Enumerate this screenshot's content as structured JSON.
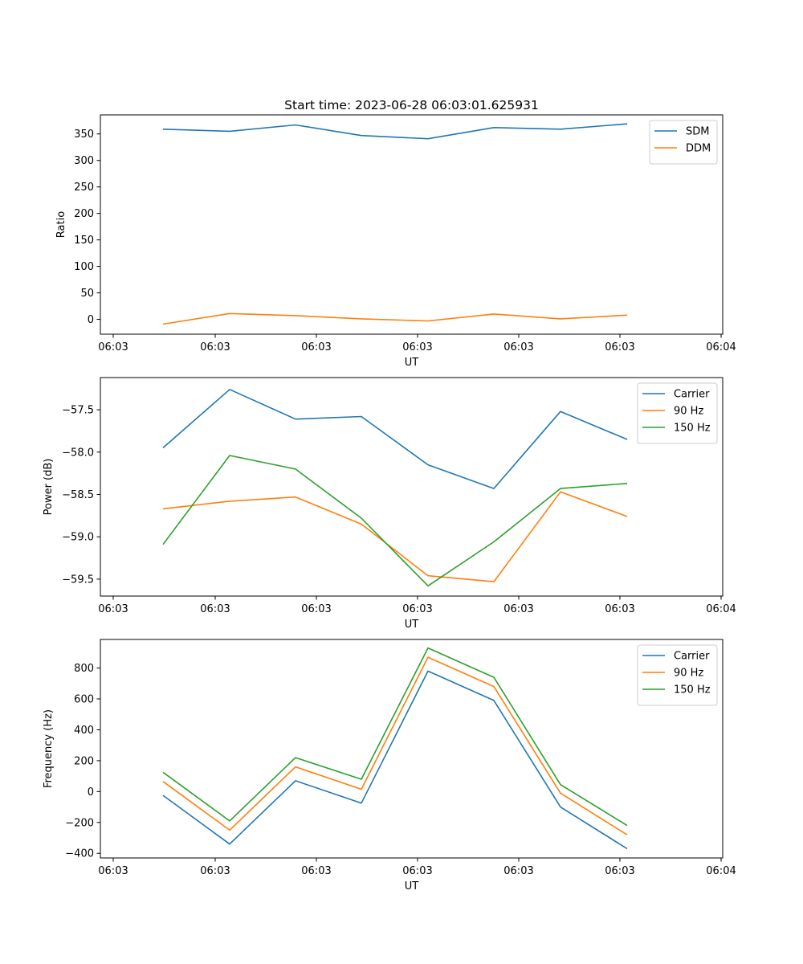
{
  "chart_data": [
    {
      "type": "line",
      "title": "Start time: 2023-06-28 06:03:01.625931",
      "xlabel": "UT",
      "ylabel": "Ratio",
      "x_tick_labels": [
        "06:03",
        "06:03",
        "06:03",
        "06:03",
        "06:03",
        "06:03",
        "06:04"
      ],
      "ylim": [
        -28,
        386
      ],
      "yticks": [
        0,
        50,
        100,
        150,
        200,
        250,
        300,
        350
      ],
      "legend": "top-right",
      "grid": false,
      "series": [
        {
          "name": "SDM",
          "color": "#1f77b4",
          "values": [
            359,
            355,
            367,
            347,
            341,
            362,
            359,
            369
          ]
        },
        {
          "name": "DDM",
          "color": "#ff7f0e",
          "values": [
            -9,
            11,
            7,
            1,
            -3,
            10,
            1,
            8
          ]
        }
      ]
    },
    {
      "type": "line",
      "title": "",
      "xlabel": "UT",
      "ylabel": "Power (dB)",
      "x_tick_labels": [
        "06:03",
        "06:03",
        "06:03",
        "06:03",
        "06:03",
        "06:03",
        "06:04"
      ],
      "ylim": [
        -59.7,
        -57.12
      ],
      "yticks": [
        -59.5,
        -59.0,
        -58.5,
        -58.0,
        -57.5
      ],
      "legend": "top-right",
      "grid": false,
      "series": [
        {
          "name": "Carrier",
          "color": "#1f77b4",
          "values": [
            -57.95,
            -57.26,
            -57.61,
            -57.58,
            -58.15,
            -58.43,
            -57.52,
            -57.85
          ]
        },
        {
          "name": "90 Hz",
          "color": "#ff7f0e",
          "values": [
            -58.67,
            -58.58,
            -58.53,
            -58.85,
            -59.46,
            -59.53,
            -58.47,
            -58.76
          ]
        },
        {
          "name": "150 Hz",
          "color": "#2ca02c",
          "values": [
            -59.09,
            -58.04,
            -58.2,
            -58.78,
            -59.58,
            -59.06,
            -58.43,
            -58.37
          ]
        }
      ]
    },
    {
      "type": "line",
      "title": "",
      "xlabel": "UT",
      "ylabel": "Frequency (Hz)",
      "x_tick_labels": [
        "06:03",
        "06:03",
        "06:03",
        "06:03",
        "06:03",
        "06:03",
        "06:04"
      ],
      "ylim": [
        -430,
        985
      ],
      "yticks": [
        -400,
        -200,
        0,
        200,
        400,
        600,
        800
      ],
      "legend": "top-right",
      "grid": false,
      "series": [
        {
          "name": "Carrier",
          "color": "#1f77b4",
          "values": [
            -25,
            -340,
            70,
            -75,
            780,
            590,
            -100,
            -370
          ]
        },
        {
          "name": "90 Hz",
          "color": "#ff7f0e",
          "values": [
            65,
            -250,
            160,
            15,
            870,
            680,
            -10,
            -280
          ]
        },
        {
          "name": "150 Hz",
          "color": "#2ca02c",
          "values": [
            125,
            -190,
            220,
            80,
            930,
            740,
            45,
            -220
          ]
        }
      ]
    }
  ]
}
